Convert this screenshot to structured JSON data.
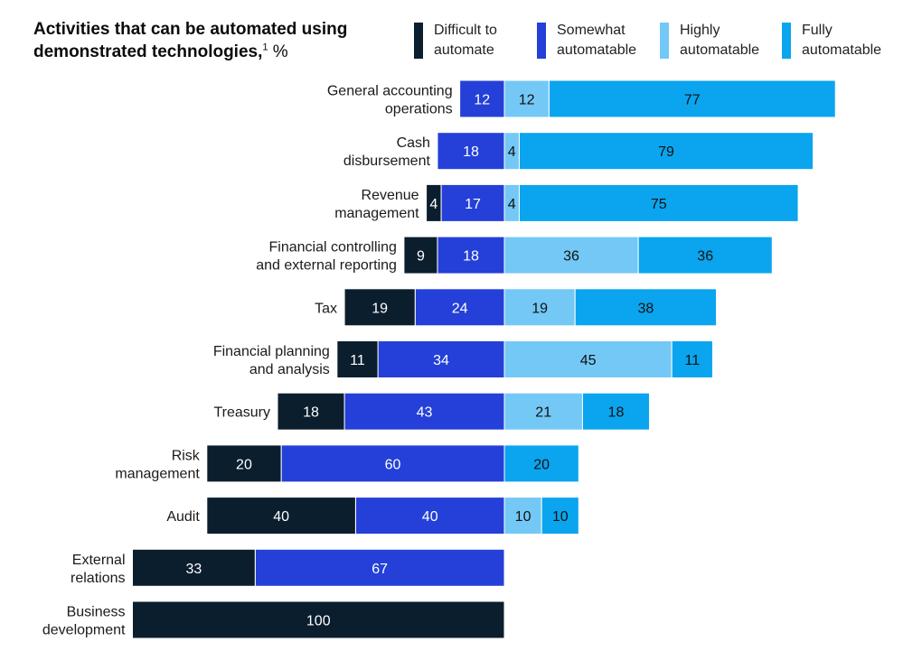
{
  "header": {
    "title_line1": "Activities that can be automated using",
    "title_line2": "demonstrated technologies,",
    "title_sup": "1",
    "title_unit": " %"
  },
  "legend": [
    {
      "label": "Difficult to\nautomate",
      "color": "#0b1e2e"
    },
    {
      "label": "Somewhat\nautomatable",
      "color": "#2440d8"
    },
    {
      "label": "Highly\nautomatable",
      "color": "#73c8f5"
    },
    {
      "label": "Fully\nautomatable",
      "color": "#0aa5ee"
    }
  ],
  "chart_data": {
    "type": "bar",
    "orientation": "horizontal",
    "stacked": true,
    "diverging": true,
    "xlim": [
      -100,
      100
    ],
    "grid": false,
    "legend_position": "top",
    "categories": [
      "General accounting\noperations",
      "Cash\ndisbursement",
      "Revenue\nmanagement",
      "Financial controlling\nand external reporting",
      "Tax",
      "Financial planning\nand analysis",
      "Treasury",
      "Risk\nmanagement",
      "Audit",
      "External\nrelations",
      "Business\ndevelopment"
    ],
    "series": [
      {
        "name": "Difficult to automate",
        "side": "left",
        "color": "#0b1e2e",
        "text_color": "#ffffff",
        "values": [
          0,
          0,
          4,
          9,
          19,
          11,
          18,
          20,
          40,
          33,
          100
        ]
      },
      {
        "name": "Somewhat automatable",
        "side": "left",
        "color": "#2440d8",
        "text_color": "#ffffff",
        "values": [
          12,
          18,
          17,
          18,
          24,
          34,
          43,
          60,
          40,
          67,
          0
        ]
      },
      {
        "name": "Highly automatable",
        "side": "right",
        "color": "#73c8f5",
        "text_color": "#111111",
        "values": [
          12,
          4,
          4,
          36,
          19,
          45,
          21,
          0,
          10,
          0,
          0
        ]
      },
      {
        "name": "Fully automatable",
        "side": "right",
        "color": "#0aa5ee",
        "text_color": "#111111",
        "values": [
          77,
          79,
          75,
          36,
          38,
          11,
          18,
          20,
          10,
          0,
          0
        ]
      }
    ]
  }
}
